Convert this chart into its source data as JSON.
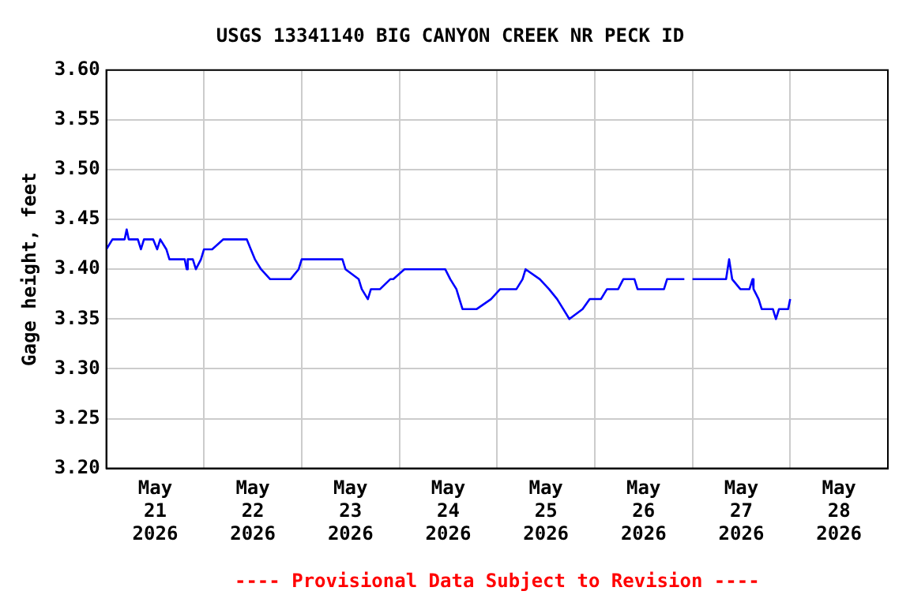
{
  "chart_data": {
    "type": "line",
    "title": "USGS 13341140 BIG CANYON CREEK NR PECK ID",
    "ylabel": "Gage height, feet",
    "annotations": [
      "---- Provisional Data Subject to Revision ----"
    ],
    "x": [
      "2026-05-21T00:00",
      "2026-05-21T01:30",
      "2026-05-21T04:30",
      "2026-05-21T05:00",
      "2026-05-21T05:30",
      "2026-05-21T07:45",
      "2026-05-21T08:30",
      "2026-05-21T09:15",
      "2026-05-21T11:30",
      "2026-05-21T12:30",
      "2026-05-21T13:15",
      "2026-05-21T14:45",
      "2026-05-21T15:30",
      "2026-05-21T19:15",
      "2026-05-21T19:45",
      "2026-05-21T20:00",
      "2026-05-21T21:15",
      "2026-05-21T22:00",
      "2026-05-21T23:15",
      "2026-05-22T00:00",
      "2026-05-22T02:00",
      "2026-05-22T04:45",
      "2026-05-22T10:30",
      "2026-05-22T11:30",
      "2026-05-22T12:30",
      "2026-05-22T14:00",
      "2026-05-22T16:15",
      "2026-05-22T21:15",
      "2026-05-22T23:15",
      "2026-05-23T00:00",
      "2026-05-23T10:00",
      "2026-05-23T10:45",
      "2026-05-23T14:00",
      "2026-05-23T14:45",
      "2026-05-23T16:15",
      "2026-05-23T17:00",
      "2026-05-23T19:15",
      "2026-05-23T21:45",
      "2026-05-23T22:30",
      "2026-05-24T01:15",
      "2026-05-24T11:15",
      "2026-05-24T12:30",
      "2026-05-24T14:00",
      "2026-05-24T14:45",
      "2026-05-24T15:30",
      "2026-05-24T19:00",
      "2026-05-24T22:30",
      "2026-05-25T00:45",
      "2026-05-25T04:45",
      "2026-05-25T06:15",
      "2026-05-25T07:00",
      "2026-05-25T10:30",
      "2026-05-25T12:45",
      "2026-05-25T14:45",
      "2026-05-25T16:15",
      "2026-05-25T17:45",
      "2026-05-25T21:00",
      "2026-05-25T22:45",
      "2026-05-26T01:30",
      "2026-05-26T03:00",
      "2026-05-26T05:45",
      "2026-05-26T07:00",
      "2026-05-26T09:45",
      "2026-05-26T10:30",
      "2026-05-26T17:00",
      "2026-05-26T17:45",
      "2026-05-26T22:00",
      "2026-05-26T22:45",
      "2026-05-27T00:00",
      "2026-05-27T08:15",
      "2026-05-27T09:00",
      "2026-05-27T09:45",
      "2026-05-27T11:45",
      "2026-05-27T14:00",
      "2026-05-27T14:45",
      "2026-05-27T15:00",
      "2026-05-27T16:15",
      "2026-05-27T17:00",
      "2026-05-27T19:45",
      "2026-05-27T20:30",
      "2026-05-27T21:15",
      "2026-05-27T23:30",
      "2026-05-28T00:00"
    ],
    "series": [
      {
        "color": "#0000ff",
        "values": [
          3.42,
          3.43,
          3.43,
          3.44,
          3.43,
          3.43,
          3.42,
          3.43,
          3.43,
          3.42,
          3.43,
          3.42,
          3.41,
          3.41,
          3.4,
          3.41,
          3.41,
          3.4,
          3.41,
          3.42,
          3.42,
          3.43,
          3.43,
          3.42,
          3.41,
          3.4,
          3.39,
          3.39,
          3.4,
          3.41,
          3.41,
          3.4,
          3.39,
          3.38,
          3.37,
          3.38,
          3.38,
          3.39,
          3.39,
          3.4,
          3.4,
          3.39,
          3.38,
          3.37,
          3.36,
          3.36,
          3.37,
          3.38,
          3.38,
          3.39,
          3.4,
          3.39,
          3.38,
          3.37,
          3.36,
          3.35,
          3.36,
          3.37,
          3.37,
          3.38,
          3.38,
          3.39,
          3.39,
          3.38,
          3.38,
          3.39,
          3.39,
          null,
          3.39,
          3.39,
          3.41,
          3.39,
          3.38,
          3.38,
          3.39,
          3.38,
          3.37,
          3.36,
          3.36,
          3.35,
          3.36,
          3.36,
          3.37
        ]
      }
    ],
    "xlim": [
      "2026-05-21T00:00",
      "2026-05-29T00:00"
    ],
    "xticks": [
      {
        "value": "2026-05-21T12:00",
        "label": "May\n21\n2026"
      },
      {
        "value": "2026-05-22T00:00",
        "label": null
      },
      {
        "value": "2026-05-22T12:00",
        "label": "May\n22\n2026"
      },
      {
        "value": "2026-05-23T00:00",
        "label": null
      },
      {
        "value": "2026-05-23T12:00",
        "label": "May\n23\n2026"
      },
      {
        "value": "2026-05-24T00:00",
        "label": null
      },
      {
        "value": "2026-05-24T12:00",
        "label": "May\n24\n2026"
      },
      {
        "value": "2026-05-25T00:00",
        "label": null
      },
      {
        "value": "2026-05-25T12:00",
        "label": "May\n25\n2026"
      },
      {
        "value": "2026-05-26T00:00",
        "label": null
      },
      {
        "value": "2026-05-26T12:00",
        "label": "May\n26\n2026"
      },
      {
        "value": "2026-05-27T00:00",
        "label": null
      },
      {
        "value": "2026-05-27T12:00",
        "label": "May\n27\n2026"
      },
      {
        "value": "2026-05-28T00:00",
        "label": null
      },
      {
        "value": "2026-05-28T12:00",
        "label": "May\n28\n2026"
      }
    ],
    "ylim": [
      3.2,
      3.6
    ],
    "yticks": [
      {
        "value": 3.2,
        "label": "3.20"
      },
      {
        "value": 3.25,
        "label": "3.25"
      },
      {
        "value": 3.3,
        "label": "3.30"
      },
      {
        "value": 3.35,
        "label": "3.35"
      },
      {
        "value": 3.4,
        "label": "3.40"
      },
      {
        "value": 3.45,
        "label": "3.45"
      },
      {
        "value": 3.5,
        "label": "3.50"
      },
      {
        "value": 3.55,
        "label": "3.55"
      },
      {
        "value": 3.6,
        "label": "3.60"
      }
    ],
    "grid": true,
    "legend": false,
    "marker": "none",
    "line_style": "solid"
  }
}
